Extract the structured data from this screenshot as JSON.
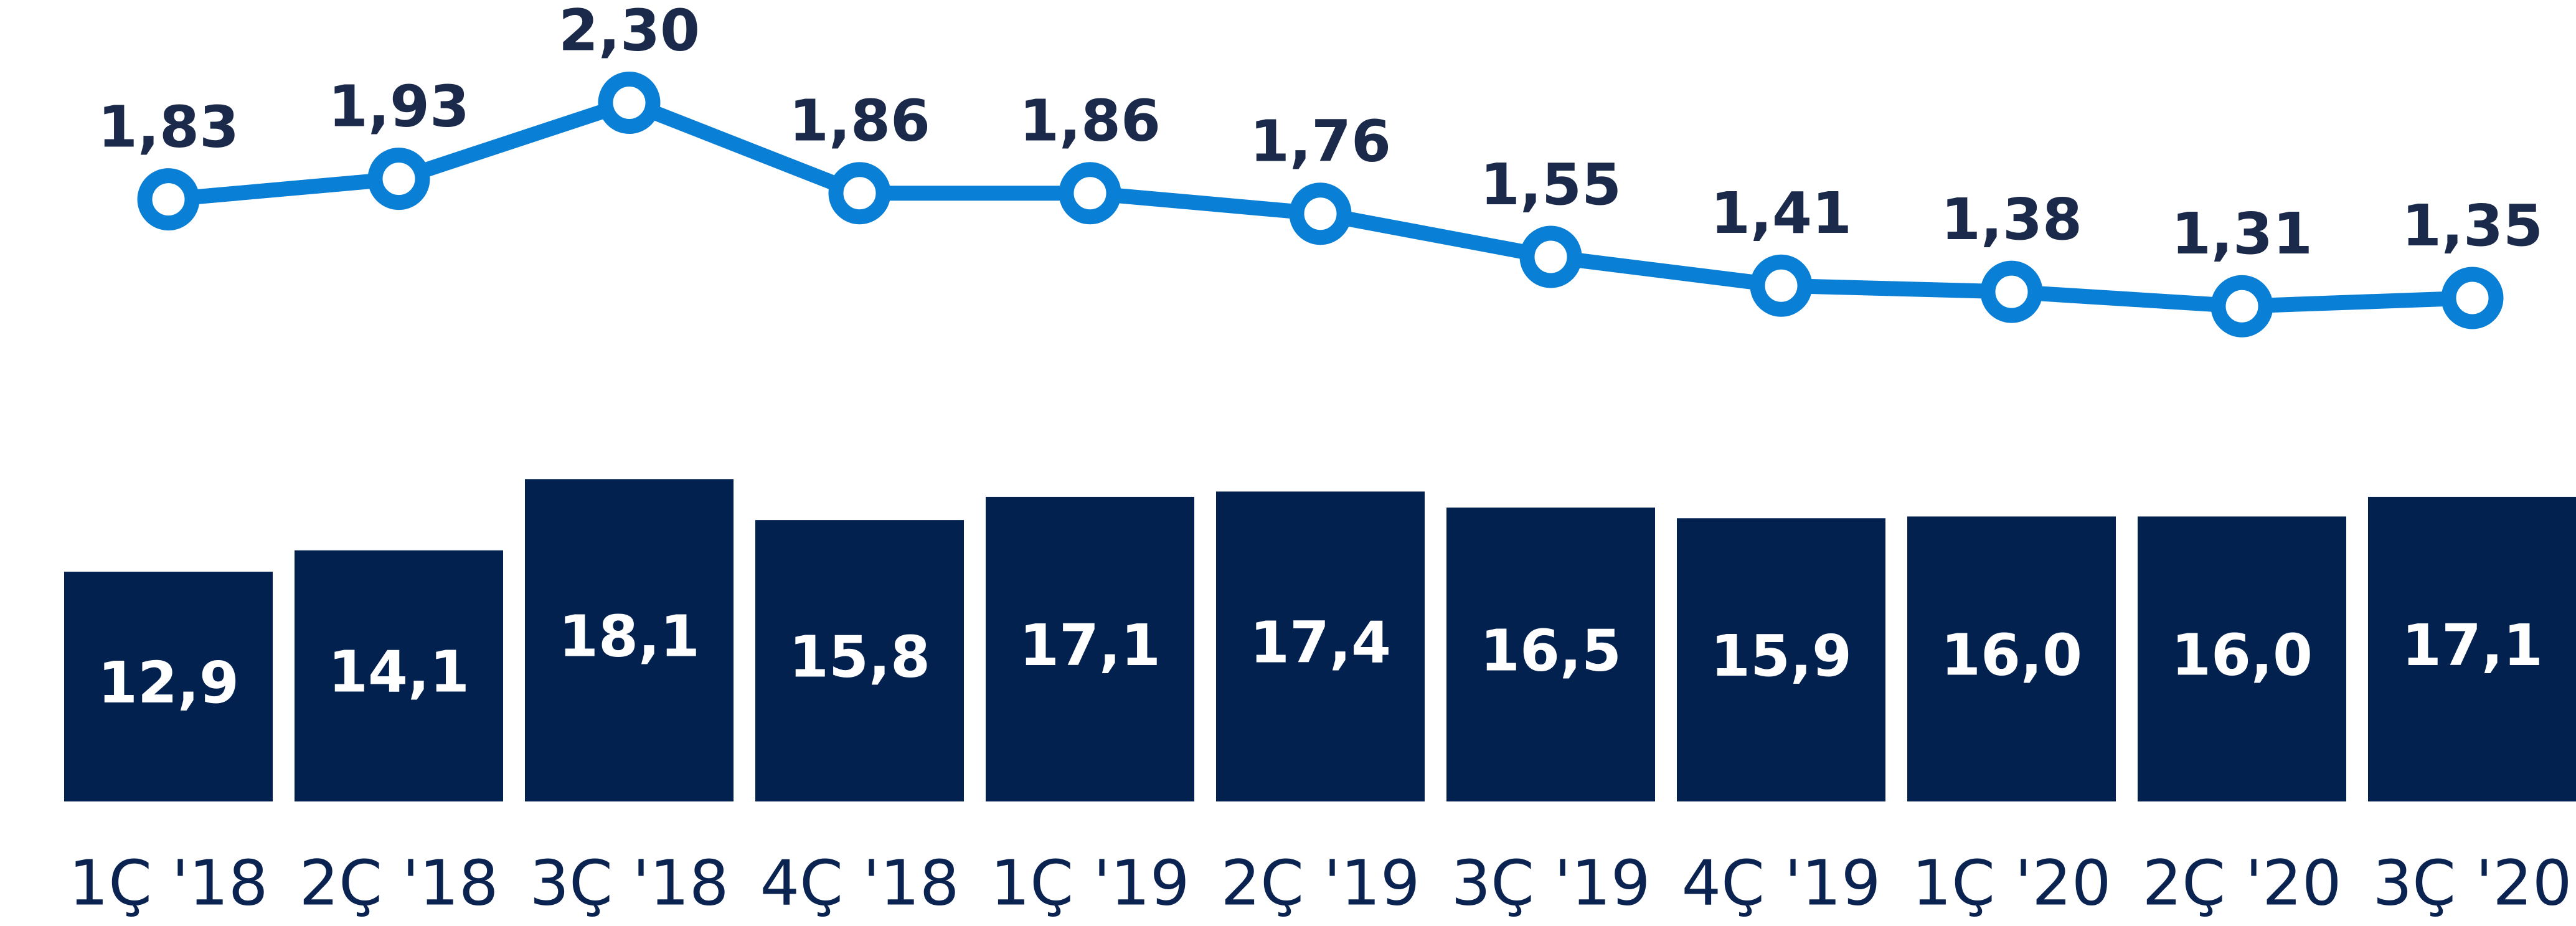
{
  "chart_data": {
    "type": "combo",
    "categories": [
      "1Ç '18",
      "2Ç '18",
      "3Ç '18",
      "4Ç '18",
      "1Ç '19",
      "2Ç '19",
      "3Ç '19",
      "4Ç '19",
      "1Ç '20",
      "2Ç '20",
      "3Ç '20"
    ],
    "series": [
      {
        "type": "bar",
        "color": "#03214f",
        "values": [
          12.9,
          14.1,
          18.1,
          15.8,
          17.1,
          17.4,
          16.5,
          15.9,
          16.0,
          16.0,
          17.1
        ],
        "value_labels": [
          "12,9",
          "14,1",
          "18,1",
          "15,8",
          "17,1",
          "17,4",
          "16,5",
          "15,9",
          "16,0",
          "16,0",
          "17,1"
        ]
      },
      {
        "type": "line",
        "axis": "y2",
        "color": "#0a7fd6",
        "values": [
          1.83,
          1.93,
          2.3,
          1.86,
          1.86,
          1.76,
          1.55,
          1.41,
          1.38,
          1.31,
          1.35
        ],
        "value_labels": [
          "1,83",
          "1,93",
          "2,30",
          "1,86",
          "1,86",
          "1,76",
          "1,55",
          "1,41",
          "1,38",
          "1,31",
          "1,35"
        ]
      }
    ],
    "ylim": [
      0,
      45
    ],
    "y2lim": [
      -1.1,
      2.8
    ]
  }
}
